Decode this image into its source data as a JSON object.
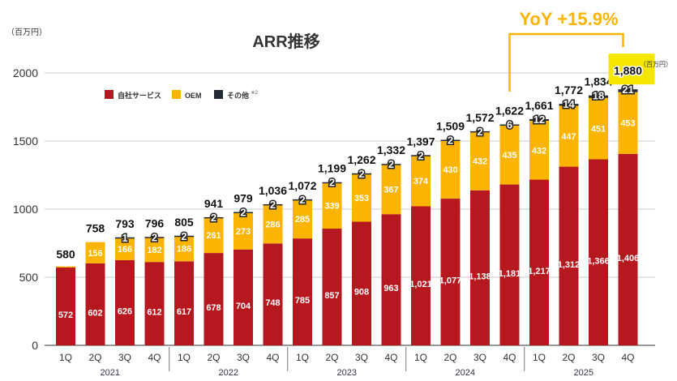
{
  "chart_data": {
    "type": "bar",
    "stacked": true,
    "title": "ARR推移",
    "ylabel": "（百万円）",
    "unit_note": "（百万円）",
    "ylim": [
      0,
      2000
    ],
    "yticks": [
      0,
      500,
      1000,
      1500,
      2000
    ],
    "grid": true,
    "legend_position": "top-left",
    "categories": [
      "1Q",
      "2Q",
      "3Q",
      "4Q",
      "1Q",
      "2Q",
      "3Q",
      "4Q",
      "1Q",
      "2Q",
      "3Q",
      "4Q",
      "1Q",
      "2Q",
      "3Q",
      "4Q",
      "1Q",
      "2Q",
      "3Q",
      "4Q"
    ],
    "years": [
      "2021",
      "2022",
      "2023",
      "2024",
      "2025"
    ],
    "series": [
      {
        "name": "自社サービス",
        "color": "#b5191f",
        "values": [
          572,
          602,
          626,
          612,
          617,
          678,
          704,
          748,
          785,
          857,
          908,
          963,
          1021,
          1077,
          1138,
          1181,
          1217,
          1312,
          1366,
          1406
        ]
      },
      {
        "name": "OEM",
        "color": "#fbb400",
        "values": [
          8,
          156,
          166,
          182,
          186,
          261,
          273,
          286,
          285,
          339,
          353,
          367,
          374,
          430,
          432,
          435,
          432,
          447,
          451,
          453
        ]
      },
      {
        "name": "その他",
        "name_note": "※2",
        "color": "#232935",
        "values": [
          null,
          null,
          1,
          2,
          2,
          2,
          2,
          2,
          2,
          2,
          2,
          2,
          2,
          2,
          2,
          6,
          12,
          14,
          18,
          21
        ]
      }
    ],
    "totals": [
      "580",
      "758",
      "793",
      "796",
      "805",
      "941",
      "979",
      "1,036",
      "1,072",
      "1,199",
      "1,262",
      "1,332",
      "1,397",
      "1,509",
      "1,572",
      "1,622",
      "1,661",
      "1,772",
      "1,834",
      "1,880"
    ],
    "annotation": {
      "text": "YoY +15.9%",
      "color": "#fbb400",
      "highlight_color": "#f5e600"
    }
  }
}
